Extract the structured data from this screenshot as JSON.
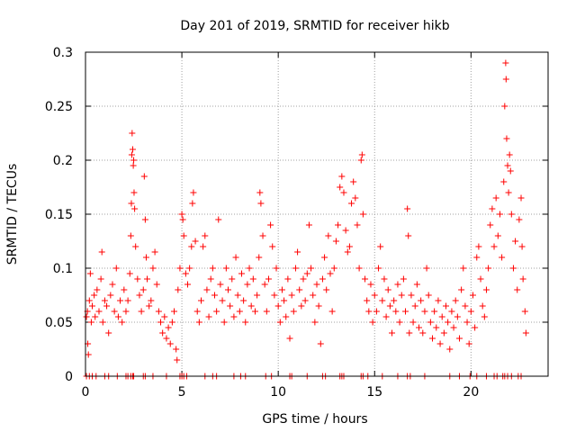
{
  "chart_data": {
    "type": "scatter",
    "title": "Day 201 of 2019, SRMTID for receiver hikb",
    "xlabel": "GPS time / hours",
    "ylabel": "SRMTID / TECUs",
    "xlim": [
      0,
      24
    ],
    "ylim": [
      0,
      0.3
    ],
    "x_ticks": [
      "0",
      "5",
      "10",
      "15",
      "20"
    ],
    "x_tick_values": [
      0,
      5,
      10,
      15,
      20
    ],
    "y_ticks": [
      "0",
      "0.05",
      "0.1",
      "0.15",
      "0.2",
      "0.25",
      "0.3"
    ],
    "y_tick_values": [
      0,
      0.05,
      0.1,
      0.15,
      0.2,
      0.25,
      0.3
    ],
    "grid": true,
    "marker": "plus",
    "marker_color": "#ff0000",
    "series": [
      {
        "points": [
          [
            0.05,
            0.055
          ],
          [
            0.1,
            0.06
          ],
          [
            0.12,
            0.03
          ],
          [
            0.15,
            0.02
          ],
          [
            0.2,
            0.07
          ],
          [
            0.25,
            0.095
          ],
          [
            0.3,
            0.05
          ],
          [
            0.35,
            0.065
          ],
          [
            0.45,
            0.075
          ],
          [
            0.5,
            0.055
          ],
          [
            0.6,
            0.08
          ],
          [
            0.7,
            0.06
          ],
          [
            0.8,
            0.09
          ],
          [
            0.85,
            0.115
          ],
          [
            0.9,
            0.05
          ],
          [
            1.0,
            0.07
          ],
          [
            1.1,
            0.065
          ],
          [
            1.2,
            0.04
          ],
          [
            1.3,
            0.075
          ],
          [
            1.4,
            0.085
          ],
          [
            1.5,
            0.06
          ],
          [
            1.6,
            0.1
          ],
          [
            1.7,
            0.055
          ],
          [
            1.8,
            0.07
          ],
          [
            1.9,
            0.05
          ],
          [
            2.0,
            0.08
          ],
          [
            2.1,
            0.06
          ],
          [
            2.2,
            0.07
          ],
          [
            2.3,
            0.095
          ],
          [
            2.35,
            0.13
          ],
          [
            2.38,
            0.16
          ],
          [
            2.4,
            0.205
          ],
          [
            2.42,
            0.225
          ],
          [
            2.45,
            0.21
          ],
          [
            2.48,
            0.195
          ],
          [
            2.5,
            0.2
          ],
          [
            2.52,
            0.17
          ],
          [
            2.55,
            0.155
          ],
          [
            2.6,
            0.12
          ],
          [
            2.7,
            0.09
          ],
          [
            2.8,
            0.075
          ],
          [
            2.9,
            0.06
          ],
          [
            3.0,
            0.08
          ],
          [
            3.05,
            0.185
          ],
          [
            3.1,
            0.145
          ],
          [
            3.15,
            0.11
          ],
          [
            3.2,
            0.09
          ],
          [
            3.3,
            0.065
          ],
          [
            3.4,
            0.07
          ],
          [
            3.5,
            0.1
          ],
          [
            3.6,
            0.115
          ],
          [
            3.7,
            0.085
          ],
          [
            3.8,
            0.06
          ],
          [
            3.9,
            0.05
          ],
          [
            4.0,
            0.04
          ],
          [
            4.1,
            0.055
          ],
          [
            4.2,
            0.035
          ],
          [
            4.3,
            0.045
          ],
          [
            4.4,
            0.03
          ],
          [
            4.5,
            0.05
          ],
          [
            4.6,
            0.06
          ],
          [
            4.7,
            0.025
          ],
          [
            4.75,
            0.015
          ],
          [
            4.8,
            0.08
          ],
          [
            4.9,
            0.1
          ],
          [
            5.0,
            0.15
          ],
          [
            5.05,
            0.145
          ],
          [
            5.1,
            0.13
          ],
          [
            5.2,
            0.095
          ],
          [
            5.3,
            0.085
          ],
          [
            5.4,
            0.1
          ],
          [
            5.5,
            0.12
          ],
          [
            5.55,
            0.16
          ],
          [
            5.6,
            0.17
          ],
          [
            5.7,
            0.125
          ],
          [
            5.8,
            0.06
          ],
          [
            5.9,
            0.05
          ],
          [
            6.0,
            0.07
          ],
          [
            6.1,
            0.12
          ],
          [
            6.2,
            0.13
          ],
          [
            6.3,
            0.08
          ],
          [
            6.4,
            0.055
          ],
          [
            6.5,
            0.09
          ],
          [
            6.6,
            0.1
          ],
          [
            6.7,
            0.075
          ],
          [
            6.8,
            0.06
          ],
          [
            6.9,
            0.145
          ],
          [
            7.0,
            0.085
          ],
          [
            7.1,
            0.07
          ],
          [
            7.2,
            0.05
          ],
          [
            7.3,
            0.1
          ],
          [
            7.4,
            0.08
          ],
          [
            7.5,
            0.065
          ],
          [
            7.6,
            0.09
          ],
          [
            7.7,
            0.055
          ],
          [
            7.8,
            0.11
          ],
          [
            7.9,
            0.075
          ],
          [
            8.0,
            0.06
          ],
          [
            8.1,
            0.095
          ],
          [
            8.2,
            0.07
          ],
          [
            8.3,
            0.05
          ],
          [
            8.4,
            0.085
          ],
          [
            8.5,
            0.1
          ],
          [
            8.6,
            0.065
          ],
          [
            8.7,
            0.09
          ],
          [
            8.8,
            0.06
          ],
          [
            8.9,
            0.075
          ],
          [
            9.0,
            0.11
          ],
          [
            9.05,
            0.17
          ],
          [
            9.1,
            0.16
          ],
          [
            9.2,
            0.13
          ],
          [
            9.3,
            0.085
          ],
          [
            9.4,
            0.06
          ],
          [
            9.5,
            0.09
          ],
          [
            9.6,
            0.14
          ],
          [
            9.7,
            0.12
          ],
          [
            9.8,
            0.075
          ],
          [
            9.9,
            0.1
          ],
          [
            10.0,
            0.065
          ],
          [
            10.1,
            0.05
          ],
          [
            10.2,
            0.08
          ],
          [
            10.3,
            0.07
          ],
          [
            10.4,
            0.055
          ],
          [
            10.5,
            0.09
          ],
          [
            10.6,
            0.035
          ],
          [
            10.7,
            0.075
          ],
          [
            10.8,
            0.06
          ],
          [
            10.9,
            0.1
          ],
          [
            11.0,
            0.115
          ],
          [
            11.1,
            0.08
          ],
          [
            11.2,
            0.065
          ],
          [
            11.3,
            0.09
          ],
          [
            11.4,
            0.07
          ],
          [
            11.5,
            0.095
          ],
          [
            11.6,
            0.14
          ],
          [
            11.7,
            0.1
          ],
          [
            11.8,
            0.075
          ],
          [
            11.9,
            0.05
          ],
          [
            12.0,
            0.085
          ],
          [
            12.1,
            0.065
          ],
          [
            12.2,
            0.03
          ],
          [
            12.3,
            0.09
          ],
          [
            12.4,
            0.11
          ],
          [
            12.5,
            0.08
          ],
          [
            12.6,
            0.13
          ],
          [
            12.7,
            0.095
          ],
          [
            12.8,
            0.06
          ],
          [
            12.9,
            0.1
          ],
          [
            13.0,
            0.125
          ],
          [
            13.1,
            0.14
          ],
          [
            13.2,
            0.175
          ],
          [
            13.3,
            0.185
          ],
          [
            13.4,
            0.17
          ],
          [
            13.5,
            0.135
          ],
          [
            13.6,
            0.115
          ],
          [
            13.7,
            0.12
          ],
          [
            13.8,
            0.16
          ],
          [
            13.9,
            0.18
          ],
          [
            14.0,
            0.165
          ],
          [
            14.1,
            0.14
          ],
          [
            14.2,
            0.1
          ],
          [
            14.3,
            0.2
          ],
          [
            14.35,
            0.205
          ],
          [
            14.4,
            0.15
          ],
          [
            14.5,
            0.09
          ],
          [
            14.6,
            0.07
          ],
          [
            14.7,
            0.06
          ],
          [
            14.8,
            0.085
          ],
          [
            14.9,
            0.05
          ],
          [
            15.0,
            0.075
          ],
          [
            15.1,
            0.06
          ],
          [
            15.2,
            0.1
          ],
          [
            15.3,
            0.12
          ],
          [
            15.4,
            0.07
          ],
          [
            15.5,
            0.09
          ],
          [
            15.6,
            0.055
          ],
          [
            15.7,
            0.08
          ],
          [
            15.8,
            0.065
          ],
          [
            15.9,
            0.04
          ],
          [
            16.0,
            0.07
          ],
          [
            16.1,
            0.06
          ],
          [
            16.2,
            0.085
          ],
          [
            16.3,
            0.05
          ],
          [
            16.4,
            0.075
          ],
          [
            16.5,
            0.09
          ],
          [
            16.6,
            0.06
          ],
          [
            16.7,
            0.155
          ],
          [
            16.75,
            0.13
          ],
          [
            16.8,
            0.04
          ],
          [
            16.9,
            0.075
          ],
          [
            17.0,
            0.05
          ],
          [
            17.1,
            0.065
          ],
          [
            17.2,
            0.085
          ],
          [
            17.3,
            0.045
          ],
          [
            17.4,
            0.07
          ],
          [
            17.5,
            0.04
          ],
          [
            17.6,
            0.06
          ],
          [
            17.7,
            0.1
          ],
          [
            17.8,
            0.075
          ],
          [
            17.9,
            0.05
          ],
          [
            18.0,
            0.035
          ],
          [
            18.1,
            0.06
          ],
          [
            18.2,
            0.045
          ],
          [
            18.3,
            0.07
          ],
          [
            18.4,
            0.03
          ],
          [
            18.5,
            0.055
          ],
          [
            18.6,
            0.04
          ],
          [
            18.7,
            0.065
          ],
          [
            18.8,
            0.05
          ],
          [
            18.9,
            0.025
          ],
          [
            19.0,
            0.06
          ],
          [
            19.1,
            0.045
          ],
          [
            19.2,
            0.07
          ],
          [
            19.3,
            0.055
          ],
          [
            19.4,
            0.035
          ],
          [
            19.5,
            0.08
          ],
          [
            19.6,
            0.1
          ],
          [
            19.7,
            0.065
          ],
          [
            19.8,
            0.05
          ],
          [
            19.9,
            0.03
          ],
          [
            20.0,
            0.06
          ],
          [
            20.1,
            0.075
          ],
          [
            20.2,
            0.045
          ],
          [
            20.3,
            0.11
          ],
          [
            20.4,
            0.12
          ],
          [
            20.5,
            0.09
          ],
          [
            20.6,
            0.065
          ],
          [
            20.7,
            0.055
          ],
          [
            20.8,
            0.08
          ],
          [
            20.9,
            0.1
          ],
          [
            21.0,
            0.14
          ],
          [
            21.1,
            0.155
          ],
          [
            21.2,
            0.12
          ],
          [
            21.3,
            0.165
          ],
          [
            21.4,
            0.13
          ],
          [
            21.5,
            0.15
          ],
          [
            21.6,
            0.11
          ],
          [
            21.7,
            0.18
          ],
          [
            21.75,
            0.25
          ],
          [
            21.8,
            0.29
          ],
          [
            21.82,
            0.275
          ],
          [
            21.85,
            0.22
          ],
          [
            21.9,
            0.195
          ],
          [
            21.95,
            0.17
          ],
          [
            22.0,
            0.205
          ],
          [
            22.05,
            0.19
          ],
          [
            22.1,
            0.15
          ],
          [
            22.2,
            0.1
          ],
          [
            22.3,
            0.125
          ],
          [
            22.4,
            0.08
          ],
          [
            22.5,
            0.145
          ],
          [
            22.6,
            0.165
          ],
          [
            22.65,
            0.12
          ],
          [
            22.7,
            0.09
          ],
          [
            22.8,
            0.06
          ],
          [
            22.85,
            0.04
          ]
        ]
      },
      {
        "points": [
          [
            0.05,
            0
          ],
          [
            0.2,
            0
          ],
          [
            0.35,
            0
          ],
          [
            0.55,
            0
          ],
          [
            1.0,
            0
          ],
          [
            1.2,
            0
          ],
          [
            1.65,
            0
          ],
          [
            2.1,
            0
          ],
          [
            2.2,
            0
          ],
          [
            2.35,
            0
          ],
          [
            2.45,
            0
          ],
          [
            2.5,
            0
          ],
          [
            3.0,
            0
          ],
          [
            3.1,
            0
          ],
          [
            3.5,
            0
          ],
          [
            4.2,
            0
          ],
          [
            4.9,
            0
          ],
          [
            5.0,
            0
          ],
          [
            5.1,
            0
          ],
          [
            5.25,
            0
          ],
          [
            6.2,
            0
          ],
          [
            6.6,
            0
          ],
          [
            6.8,
            0
          ],
          [
            7.7,
            0
          ],
          [
            8.05,
            0
          ],
          [
            8.3,
            0
          ],
          [
            9.35,
            0
          ],
          [
            9.65,
            0
          ],
          [
            10.6,
            0
          ],
          [
            10.7,
            0
          ],
          [
            11.5,
            0
          ],
          [
            12.3,
            0
          ],
          [
            12.45,
            0
          ],
          [
            13.2,
            0
          ],
          [
            13.3,
            0
          ],
          [
            13.4,
            0
          ],
          [
            14.3,
            0
          ],
          [
            14.4,
            0
          ],
          [
            14.65,
            0
          ],
          [
            15.4,
            0
          ],
          [
            16.2,
            0
          ],
          [
            16.7,
            0
          ],
          [
            16.85,
            0
          ],
          [
            17.6,
            0
          ],
          [
            18.9,
            0
          ],
          [
            19.4,
            0
          ],
          [
            19.95,
            0
          ],
          [
            20.3,
            0
          ],
          [
            20.8,
            0
          ],
          [
            21.2,
            0
          ],
          [
            21.35,
            0
          ],
          [
            21.65,
            0
          ],
          [
            21.75,
            0
          ],
          [
            21.9,
            0
          ],
          [
            22.1,
            0
          ],
          [
            22.45,
            0
          ],
          [
            22.6,
            0
          ]
        ]
      }
    ]
  }
}
